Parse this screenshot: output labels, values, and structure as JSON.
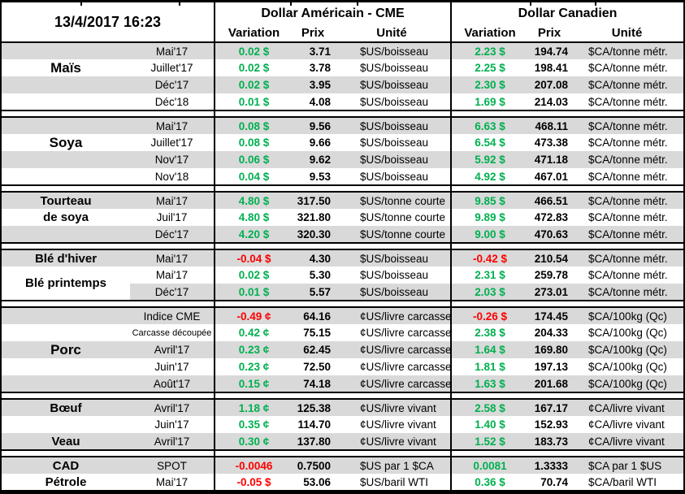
{
  "meta": {
    "timestamp": "13/4/2017 16:23"
  },
  "header": {
    "usd_title": "Dollar Américain - CME",
    "cad_title": "Dollar Canadien",
    "variation": "Variation",
    "prix": "Prix",
    "unite": "Unité"
  },
  "colors": {
    "positive": "#00B050",
    "negative": "#FF0000",
    "band": "#D9D9D9",
    "border": "#000000"
  },
  "groups": [
    {
      "name": "Maïs",
      "rows": [
        {
          "label": "",
          "contract": "Mai'17",
          "us_var": "0.02 $",
          "us_prix": "3.71",
          "us_unit": "$US/boisseau",
          "ca_var": "2.23 $",
          "ca_prix": "194.74",
          "ca_unit": "$CA/tonne métr."
        },
        {
          "label": "Maïs",
          "label_size": "lg",
          "contract": "Juillet'17",
          "us_var": "0.02 $",
          "us_prix": "3.78",
          "us_unit": "$US/boisseau",
          "ca_var": "2.25 $",
          "ca_prix": "198.41",
          "ca_unit": "$CA/tonne métr."
        },
        {
          "label": "",
          "contract": "Déc'17",
          "us_var": "0.02 $",
          "us_prix": "3.95",
          "us_unit": "$US/boisseau",
          "ca_var": "2.30 $",
          "ca_prix": "207.08",
          "ca_unit": "$CA/tonne métr."
        },
        {
          "label": "",
          "contract": "Déc'18",
          "us_var": "0.01 $",
          "us_prix": "4.08",
          "us_unit": "$US/boisseau",
          "ca_var": "1.69 $",
          "ca_prix": "214.03",
          "ca_unit": "$CA/tonne métr."
        }
      ]
    },
    {
      "name": "Soya",
      "rows": [
        {
          "label": "",
          "contract": "Mai'17",
          "us_var": "0.08 $",
          "us_prix": "9.56",
          "us_unit": "$US/boisseau",
          "ca_var": "6.63 $",
          "ca_prix": "468.11",
          "ca_unit": "$CA/tonne métr."
        },
        {
          "label": "Soya",
          "label_size": "lg",
          "contract": "Juillet'17",
          "us_var": "0.08 $",
          "us_prix": "9.66",
          "us_unit": "$US/boisseau",
          "ca_var": "6.54 $",
          "ca_prix": "473.38",
          "ca_unit": "$CA/tonne métr."
        },
        {
          "label": "",
          "contract": "Nov'17",
          "us_var": "0.06 $",
          "us_prix": "9.62",
          "us_unit": "$US/boisseau",
          "ca_var": "5.92 $",
          "ca_prix": "471.18",
          "ca_unit": "$CA/tonne métr."
        },
        {
          "label": "",
          "contract": "Nov'18",
          "us_var": "0.04 $",
          "us_prix": "9.53",
          "us_unit": "$US/boisseau",
          "ca_var": "4.92 $",
          "ca_prix": "467.01",
          "ca_unit": "$CA/tonne métr."
        }
      ]
    },
    {
      "name": "Tourteau de soya",
      "rows": [
        {
          "label": "Tourteau",
          "contract": "Mai'17",
          "us_var": "4.80 $",
          "us_prix": "317.50",
          "us_unit": "$US/tonne courte",
          "ca_var": "9.85 $",
          "ca_prix": "466.51",
          "ca_unit": "$CA/tonne métr."
        },
        {
          "label": "de soya",
          "contract": "Juil'17",
          "us_var": "4.80 $",
          "us_prix": "321.80",
          "us_unit": "$US/tonne courte",
          "ca_var": "9.89 $",
          "ca_prix": "472.83",
          "ca_unit": "$CA/tonne métr."
        },
        {
          "label": "",
          "contract": "Déc'17",
          "us_var": "4.20 $",
          "us_prix": "320.30",
          "us_unit": "$US/tonne courte",
          "ca_var": "9.00 $",
          "ca_prix": "470.63",
          "ca_unit": "$CA/tonne métr."
        }
      ]
    },
    {
      "name": "Blé",
      "rows": [
        {
          "label": "Blé d'hiver",
          "contract": "Mai'17",
          "us_var": "-0.04 $",
          "us_prix": "4.30",
          "us_unit": "$US/boisseau",
          "ca_var": "-0.42 $",
          "ca_prix": "210.54",
          "ca_unit": "$CA/tonne métr."
        },
        {
          "label": "Blé printemps",
          "label_rowspan": 2,
          "contract": "Mai'17",
          "us_var": "0.02 $",
          "us_prix": "5.30",
          "us_unit": "$US/boisseau",
          "ca_var": "2.31 $",
          "ca_prix": "259.78",
          "ca_unit": "$CA/tonne métr."
        },
        {
          "label_skip": true,
          "contract": "Déc'17",
          "us_var": "0.01 $",
          "us_prix": "5.57",
          "us_unit": "$US/boisseau",
          "ca_var": "2.03 $",
          "ca_prix": "273.01",
          "ca_unit": "$CA/tonne métr."
        }
      ]
    },
    {
      "name": "Porc",
      "rows": [
        {
          "label": "",
          "contract": "Indice CME",
          "us_var": "-0.49 ¢",
          "us_prix": "64.16",
          "us_unit": "¢US/livre carcasse",
          "ca_var": "-0.26 $",
          "ca_prix": "174.45",
          "ca_unit": "$CA/100kg (Qc)"
        },
        {
          "label": "",
          "contract": "Carcasse découpée",
          "contract_small": true,
          "us_var": "0.42 ¢",
          "us_prix": "75.15",
          "us_unit": "¢US/livre carcasse",
          "ca_var": "2.38 $",
          "ca_prix": "204.33",
          "ca_unit": "$CA/100kg (Qc)"
        },
        {
          "label": "Porc",
          "label_size": "lg",
          "contract": "Avril'17",
          "us_var": "0.23 ¢",
          "us_prix": "62.45",
          "us_unit": "¢US/livre carcasse",
          "ca_var": "1.64 $",
          "ca_prix": "169.80",
          "ca_unit": "$CA/100kg (Qc)"
        },
        {
          "label": "",
          "contract": "Juin'17",
          "us_var": "0.23 ¢",
          "us_prix": "72.50",
          "us_unit": "¢US/livre carcasse",
          "ca_var": "1.81 $",
          "ca_prix": "197.13",
          "ca_unit": "$CA/100kg (Qc)"
        },
        {
          "label": "",
          "contract": "Août'17",
          "us_var": "0.15 ¢",
          "us_prix": "74.18",
          "us_unit": "¢US/livre carcasse",
          "ca_var": "1.63 $",
          "ca_prix": "201.68",
          "ca_unit": "$CA/100kg (Qc)"
        }
      ]
    },
    {
      "name": "Bœuf / Veau",
      "rows": [
        {
          "label": "Bœuf",
          "contract": "Avril'17",
          "us_var": "1.18 ¢",
          "us_prix": "125.38",
          "us_unit": "¢US/livre vivant",
          "ca_var": "2.58 $",
          "ca_prix": "167.17",
          "ca_unit": "¢CA/livre vivant"
        },
        {
          "label": "",
          "contract": "Juin'17",
          "us_var": "0.35 ¢",
          "us_prix": "114.70",
          "us_unit": "¢US/livre vivant",
          "ca_var": "1.40 $",
          "ca_prix": "152.93",
          "ca_unit": "¢CA/livre vivant"
        },
        {
          "label": "Veau",
          "contract": "Avril'17",
          "us_var": "0.30 ¢",
          "us_prix": "137.80",
          "us_unit": "¢US/livre vivant",
          "ca_var": "1.52 $",
          "ca_prix": "183.73",
          "ca_unit": "¢CA/livre vivant"
        }
      ]
    },
    {
      "name": "CAD / Pétrole",
      "rows": [
        {
          "label": "CAD",
          "contract": "SPOT",
          "us_var": "-0.0046",
          "us_prix": "0.7500",
          "us_unit": "$US par 1 $CA",
          "ca_var": "0.0081",
          "ca_prix": "1.3333",
          "ca_unit": "$CA par 1 $US"
        },
        {
          "label": "Pétrole",
          "contract": "Mai'17",
          "us_var": "-0.05 $",
          "us_prix": "53.06",
          "us_unit": "$US/baril WTI",
          "ca_var": "0.36 $",
          "ca_prix": "70.74",
          "ca_unit": "$CA/baril WTI"
        }
      ]
    }
  ]
}
